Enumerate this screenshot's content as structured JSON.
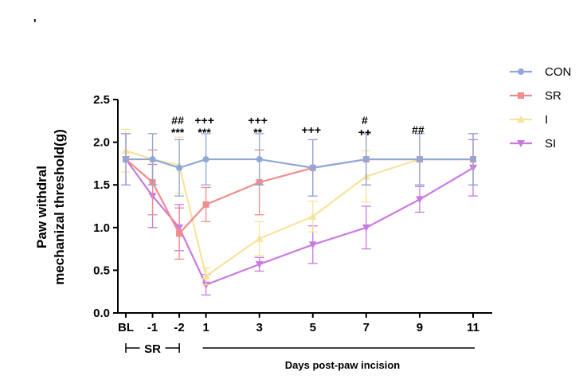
{
  "panel_mark": "'",
  "chart_data": {
    "type": "line",
    "title": "",
    "xlabel": "Days post-paw incision",
    "ylabel_lines": [
      "Paw withdral",
      "mechanizal threshold(g)"
    ],
    "categories": [
      "BL",
      "-1",
      "-2",
      "1",
      "3",
      "5",
      "7",
      "9",
      "11"
    ],
    "x": [
      0,
      1,
      2,
      3,
      5,
      7,
      9,
      11,
      13
    ],
    "ylim": [
      0,
      2.5
    ],
    "yticks": [
      "0.0",
      "0.5",
      "1.0",
      "1.5",
      "2.0",
      "2.5"
    ],
    "grid": false,
    "legend_position": "right",
    "sr_label": "SR",
    "series": [
      {
        "name": "CON",
        "color": "#8fa8d8",
        "marker": "circle",
        "values": [
          1.8,
          1.8,
          1.7,
          1.8,
          1.8,
          1.7,
          1.8,
          1.8,
          1.8
        ],
        "errors": [
          0.3,
          0.3,
          0.33,
          0.3,
          0.3,
          0.33,
          0.3,
          0.3,
          0.3
        ]
      },
      {
        "name": "SR",
        "color": "#f08c8c",
        "marker": "square",
        "values": [
          1.8,
          1.53,
          0.93,
          1.27,
          1.53,
          1.7,
          1.8,
          1.8,
          1.8
        ],
        "errors": [
          0.3,
          0.38,
          0.3,
          0.2,
          0.38,
          0.33,
          0.3,
          0.3,
          0.3
        ]
      },
      {
        "name": "I",
        "color": "#f8e39c",
        "marker": "triangle-up",
        "values": [
          1.9,
          1.8,
          1.73,
          0.43,
          0.87,
          1.13,
          1.6,
          1.8,
          1.8
        ],
        "errors": [
          0.25,
          0.3,
          0.33,
          0.1,
          0.2,
          0.18,
          0.3,
          0.3,
          0.3
        ]
      },
      {
        "name": "SI",
        "color": "#c97ae0",
        "marker": "triangle-down",
        "values": [
          1.8,
          1.37,
          1.0,
          0.33,
          0.57,
          0.8,
          1.0,
          1.33,
          1.7
        ],
        "errors": [
          0.3,
          0.37,
          0.27,
          0.12,
          0.08,
          0.22,
          0.25,
          0.15,
          0.33
        ]
      }
    ],
    "annotations": [
      {
        "category": "-2",
        "lines": [
          "##",
          "***"
        ]
      },
      {
        "category": "1",
        "lines": [
          "+++",
          "***"
        ]
      },
      {
        "category": "3",
        "lines": [
          "+++",
          "**"
        ]
      },
      {
        "category": "5",
        "lines": [
          "+++"
        ]
      },
      {
        "category": "7",
        "lines": [
          "#",
          "++"
        ]
      },
      {
        "category": "9",
        "lines": [
          "##"
        ]
      }
    ]
  }
}
